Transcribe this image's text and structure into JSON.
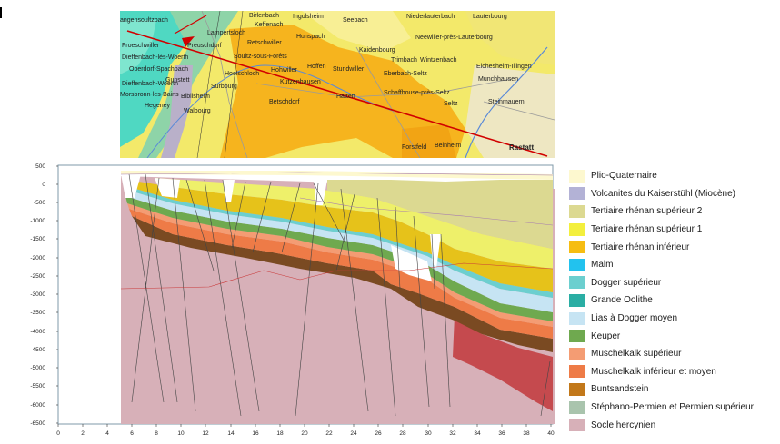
{
  "map": {
    "places": [
      {
        "name": "Birlenbach"
      },
      {
        "name": "Keffenach"
      },
      {
        "name": "Ingolsheim"
      },
      {
        "name": "Seebach"
      },
      {
        "name": "Niederlauterbach"
      },
      {
        "name": "Lauterbourg"
      },
      {
        "name": "angensoultzbach"
      },
      {
        "name": "Lampertsloch"
      },
      {
        "name": "Hunspach"
      },
      {
        "name": "Neewiller-près-Lauterbourg"
      },
      {
        "name": "Froeschwiller"
      },
      {
        "name": "Preuschdorf"
      },
      {
        "name": "Retschwiller"
      },
      {
        "name": "Kaidenbourg"
      },
      {
        "name": "Dieffenbach-lès-Woerth"
      },
      {
        "name": "Soultz-sous-Forêts"
      },
      {
        "name": "Trimbach"
      },
      {
        "name": "Wintzenbach"
      },
      {
        "name": "Oberdorf-Spachbach"
      },
      {
        "name": "Hohwiller"
      },
      {
        "name": "Hoffen"
      },
      {
        "name": "Stundwiller"
      },
      {
        "name": "Eberbach-Seltz"
      },
      {
        "name": "Elchesheim-Illingen"
      },
      {
        "name": "Gunstett"
      },
      {
        "name": "Hoelschloch"
      },
      {
        "name": "Munchhausen"
      },
      {
        "name": "Dieffenbach-Woerth"
      },
      {
        "name": "Surbourg"
      },
      {
        "name": "Kutzenhausen"
      },
      {
        "name": "Schaffhouse-près-Seltz"
      },
      {
        "name": "Morsbronn-les-Bains"
      },
      {
        "name": "Biblisheim"
      },
      {
        "name": "Betschdorf"
      },
      {
        "name": "Hatten"
      },
      {
        "name": "Seltz"
      },
      {
        "name": "Steinmauern"
      },
      {
        "name": "Hegeney"
      },
      {
        "name": "Walbourg"
      },
      {
        "name": "Forstfeld"
      },
      {
        "name": "Beinheim"
      },
      {
        "name": "Rastatt"
      }
    ]
  },
  "section": {
    "y_ticks": [
      "500",
      "0",
      "-500",
      "-1000",
      "-1500",
      "-2000",
      "-2500",
      "-3000",
      "-3500",
      "-4000",
      "-4500",
      "-5000",
      "-5500",
      "-6000",
      "-6500"
    ],
    "x_ticks": [
      "0",
      "2",
      "4",
      "6",
      "8",
      "10",
      "12",
      "14",
      "16",
      "18",
      "20",
      "22",
      "24",
      "26",
      "28",
      "30",
      "32",
      "34",
      "36",
      "38",
      "40"
    ]
  },
  "legend": [
    {
      "label": "Plio-Quaternaire",
      "color": "#fdf8cf"
    },
    {
      "label": "Volcanites du Kaiserstühl (Miocène)",
      "color": "#b3b2d6"
    },
    {
      "label": "Tertiaire rhénan supérieur 2",
      "color": "#dcd991"
    },
    {
      "label": "Tertiaire rhénan supérieur 1",
      "color": "#f3ef3d"
    },
    {
      "label": "Tertiaire rhénan inférieur",
      "color": "#f6bd12"
    },
    {
      "label": "Malm",
      "color": "#22c2ee"
    },
    {
      "label": "Dogger supérieur",
      "color": "#6ccfcf"
    },
    {
      "label": "Grande Oolithe",
      "color": "#2aaea4"
    },
    {
      "label": "Lias à Dogger moyen",
      "color": "#c6e4f3"
    },
    {
      "label": "Keuper",
      "color": "#6fa94f"
    },
    {
      "label": "Muschelkalk supérieur",
      "color": "#f49c73"
    },
    {
      "label": "Muschelkalk inférieur et moyen",
      "color": "#ee7b47"
    },
    {
      "label": "Buntsandstein",
      "color": "#c2781a"
    },
    {
      "label": "Stéphano-Permien et Permien supérieur",
      "color": "#a9c4ad"
    },
    {
      "label": "Socle hercynien",
      "color": "#d7b0b8"
    }
  ]
}
